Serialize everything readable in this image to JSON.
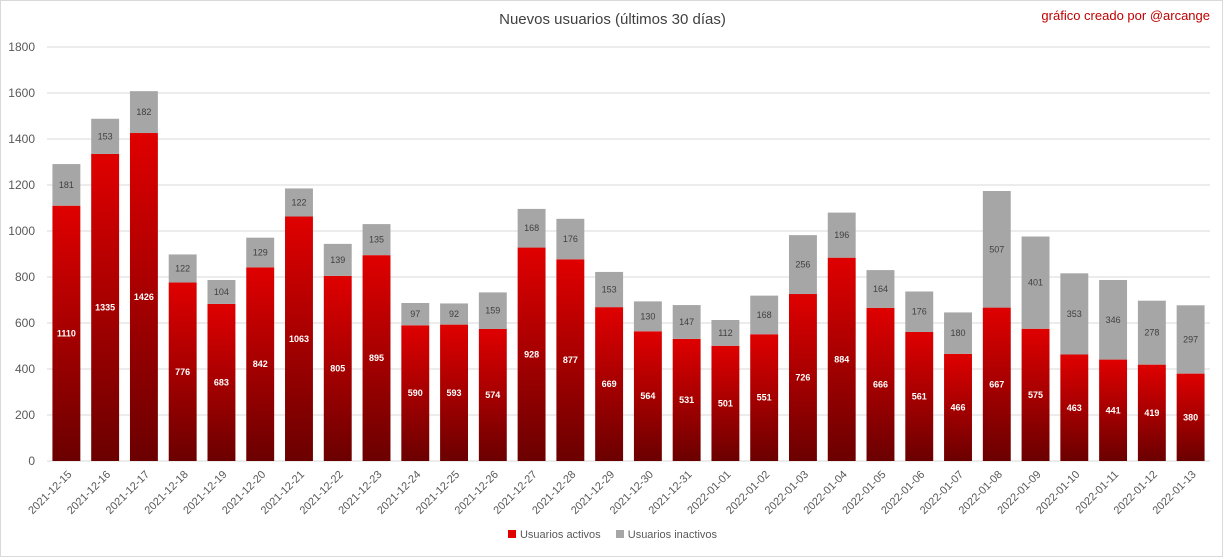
{
  "header": {
    "title": "Nuevos usuarios (últimos 30 días)",
    "credit": "gráfico creado por @arcange"
  },
  "colors": {
    "active_top": "#e00000",
    "active_bottom": "#6b0000",
    "inactive": "#a6a6a6",
    "grid": "#d9d9d9"
  },
  "chart_data": {
    "type": "bar",
    "stacked": true,
    "title": "Nuevos usuarios (últimos 30 días)",
    "xlabel": "",
    "ylabel": "",
    "ylim": [
      0,
      1800
    ],
    "yticks": [
      0,
      200,
      400,
      600,
      800,
      1000,
      1200,
      1400,
      1600,
      1800
    ],
    "grid": true,
    "legend_position": "bottom",
    "categories": [
      "2021-12-15",
      "2021-12-16",
      "2021-12-17",
      "2021-12-18",
      "2021-12-19",
      "2021-12-20",
      "2021-12-21",
      "2021-12-22",
      "2021-12-23",
      "2021-12-24",
      "2021-12-25",
      "2021-12-26",
      "2021-12-27",
      "2021-12-28",
      "2021-12-29",
      "2021-12-30",
      "2021-12-31",
      "2022-01-01",
      "2022-01-02",
      "2022-01-03",
      "2022-01-04",
      "2022-01-05",
      "2022-01-06",
      "2022-01-07",
      "2022-01-08",
      "2022-01-09",
      "2022-01-10",
      "2022-01-11",
      "2022-01-12",
      "2022-01-13"
    ],
    "series": [
      {
        "name": "Usuarios activos",
        "values": [
          1110,
          1335,
          1426,
          776,
          683,
          842,
          1063,
          805,
          895,
          590,
          593,
          574,
          928,
          877,
          669,
          564,
          531,
          501,
          551,
          726,
          884,
          666,
          561,
          466,
          667,
          575,
          463,
          441,
          419,
          380
        ]
      },
      {
        "name": "Usuarios inactivos",
        "values": [
          181,
          153,
          182,
          122,
          104,
          129,
          122,
          139,
          135,
          97,
          92,
          159,
          168,
          176,
          153,
          130,
          147,
          112,
          168,
          256,
          196,
          164,
          176,
          180,
          507,
          401,
          353,
          346,
          278,
          297
        ]
      }
    ]
  }
}
